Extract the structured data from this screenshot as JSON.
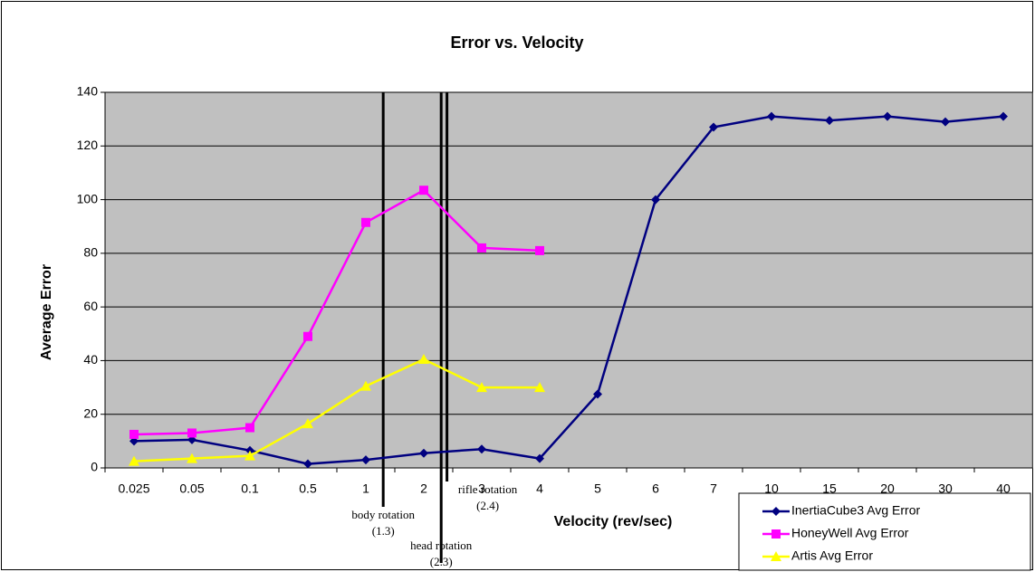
{
  "chart_data": {
    "type": "line",
    "title": "Error vs. Velocity",
    "x_label": "Velocity (rev/sec)",
    "y_label": "Average Error",
    "categories": [
      "0.025",
      "0.05",
      "0.1",
      "0.5",
      "1",
      "2",
      "3",
      "4",
      "5",
      "6",
      "7",
      "10",
      "15",
      "20",
      "30",
      "40"
    ],
    "series": [
      {
        "name": "InertiaCube3 Avg Error",
        "color": "#000080",
        "marker": "diamond",
        "values": [
          10,
          10.5,
          6.5,
          1.5,
          3,
          5.5,
          7,
          3.5,
          27.5,
          100,
          127,
          131,
          129.5,
          131,
          129,
          131
        ]
      },
      {
        "name": "HoneyWell Avg Error",
        "color": "#ff00ff",
        "marker": "square",
        "values": [
          12.5,
          13,
          15,
          49,
          91.5,
          103.5,
          82,
          81,
          null,
          null,
          null,
          null,
          null,
          null,
          null,
          null
        ]
      },
      {
        "name": "Artis Avg Error",
        "color": "#ffff00",
        "marker": "triangle",
        "values": [
          2.5,
          3.5,
          4.5,
          16.5,
          30.5,
          40.5,
          30,
          30,
          null,
          null,
          null,
          null,
          null,
          null,
          null,
          null
        ]
      }
    ],
    "annotations": [
      {
        "text": "body rotation",
        "value": 1.3,
        "value_label": "(1.3)"
      },
      {
        "text": "head rotation",
        "value": 2.3,
        "value_label": "(2.3)"
      },
      {
        "text": "rifle rotation",
        "value": 2.4,
        "value_label": "(2.4)"
      }
    ],
    "ylim": [
      0,
      140
    ],
    "yticks": [
      0,
      20,
      40,
      60,
      80,
      100,
      120,
      140
    ],
    "grid": true,
    "plot_background": "#c0c0c0",
    "legend": "bottom-right"
  }
}
